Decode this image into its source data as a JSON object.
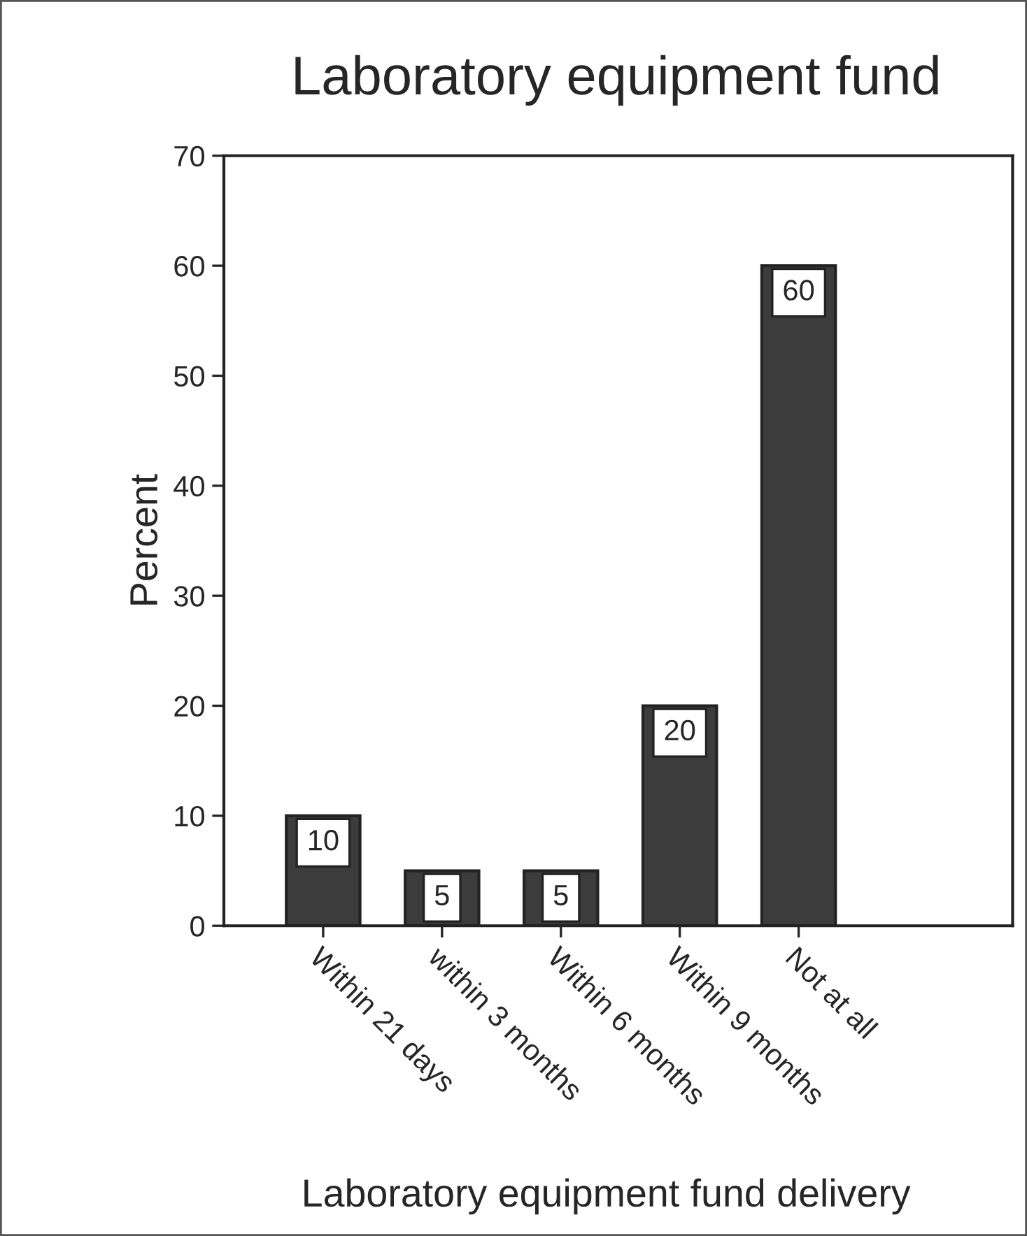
{
  "chart_data": {
    "type": "bar",
    "title": "Laboratory equipment fund",
    "xlabel": "Laboratory equipment fund delivery",
    "ylabel": "Percent",
    "categories": [
      "Within 21 days",
      "within 3 months",
      "Within 6 months",
      "Within 9 months",
      "Not at all"
    ],
    "values": [
      10,
      5,
      5,
      20,
      60
    ],
    "color": "#3c3c3c",
    "ylim": [
      0,
      70
    ],
    "yticks": [
      0,
      10,
      20,
      30,
      40,
      50,
      60,
      70
    ],
    "data_labels": true,
    "grid": false
  }
}
